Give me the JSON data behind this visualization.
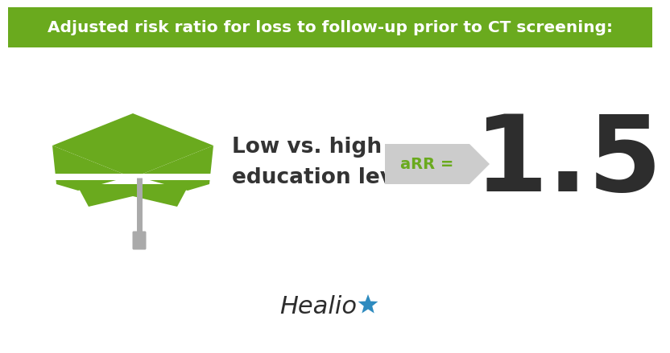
{
  "title": "Adjusted risk ratio for loss to follow-up prior to CT screening:",
  "title_bg_color": "#6aaa1e",
  "title_text_color": "#ffffff",
  "body_bg_color": "#ffffff",
  "label_text": "Low vs. high\neducation level",
  "label_text_color": "#333333",
  "arr_label": "aRR =",
  "arr_label_color": "#6aaa1e",
  "arr_bg_color": "#cccccc",
  "value": "1.5",
  "value_color": "#2d2d2d",
  "hat_color": "#6aaa1e",
  "tassel_color": "#aaaaaa",
  "healio_color": "#2d2d2d",
  "healio_star_color": "#2e8bbf",
  "healio_text": "Healio"
}
